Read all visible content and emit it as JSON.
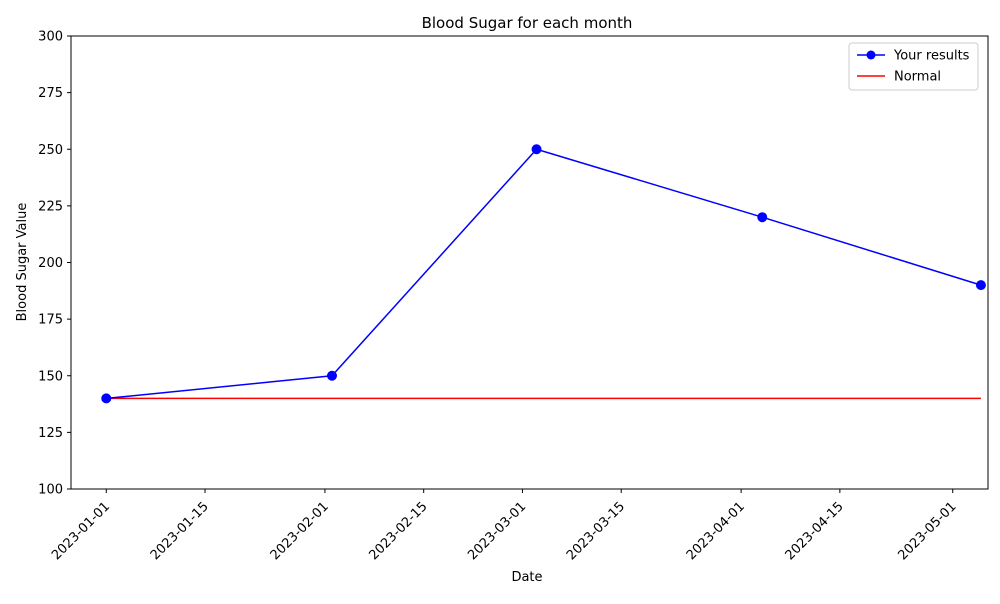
{
  "chart_data": {
    "type": "line",
    "title": "Blood Sugar for each month",
    "xlabel": "Date",
    "ylabel": "Blood Sugar Value",
    "xlim": [
      "2022-12-27",
      "2023-05-06"
    ],
    "ylim": [
      100,
      300
    ],
    "x_ticks": [
      "2023-01-01",
      "2023-01-15",
      "2023-02-01",
      "2023-02-15",
      "2023-03-01",
      "2023-03-15",
      "2023-04-01",
      "2023-04-15",
      "2023-05-01"
    ],
    "y_ticks": [
      100,
      125,
      150,
      175,
      200,
      225,
      250,
      275,
      300
    ],
    "grid": false,
    "legend_position": "top-right",
    "series": [
      {
        "name": "Your results",
        "color": "#0000ff",
        "marker": "circle",
        "x": [
          "2023-01-01",
          "2023-02-02",
          "2023-03-03",
          "2023-04-04",
          "2023-05-05"
        ],
        "y": [
          140,
          150,
          250,
          220,
          190
        ]
      },
      {
        "name": "Normal",
        "color": "#ff0000",
        "marker": "none",
        "x": [
          "2023-01-01",
          "2023-02-02",
          "2023-03-03",
          "2023-04-04",
          "2023-05-05"
        ],
        "y": [
          140,
          140,
          140,
          140,
          140
        ]
      }
    ]
  }
}
